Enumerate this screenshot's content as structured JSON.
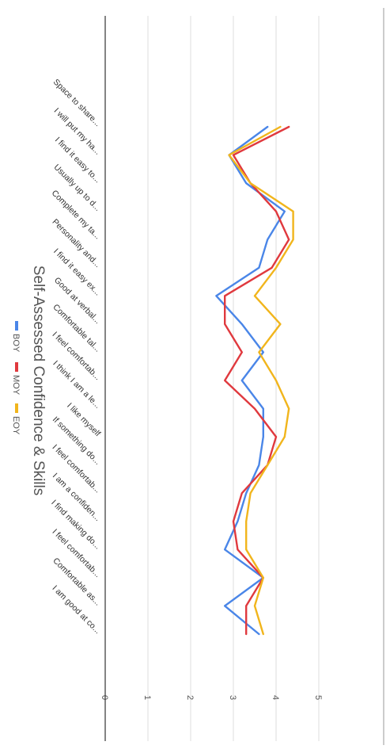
{
  "chart_data": {
    "type": "line",
    "title": "Self-Assessed Confidence & Skills",
    "xlabel": "",
    "ylabel": "",
    "ylim": [
      0,
      5
    ],
    "yticks": [
      "0",
      "1",
      "2",
      "3",
      "4",
      "5"
    ],
    "grid": true,
    "orientation": "rotated-90-clockwise",
    "legend_position": "bottom",
    "categories": [
      "I am good at co...",
      "Comfortable as...",
      "I feel comfortab...",
      "I find making do...",
      "I am a confiden...",
      "I feel comfortab...",
      "If something do...",
      "I like myself",
      "I think I am a le...",
      "I feel comfortab...",
      "Comfortable tal...",
      "Good at verbal...",
      "I find it easy ex...",
      "Personality and...",
      "Complete my ta...",
      "Usually up to d...",
      "I find it easy to...",
      "I will put my ha...",
      "Space to share..."
    ],
    "series": [
      {
        "name": "BOY",
        "color": "#4a86e8",
        "values": [
          3.6,
          2.8,
          3.7,
          2.8,
          3.1,
          3.3,
          3.6,
          3.7,
          3.7,
          3.2,
          3.7,
          3.2,
          2.6,
          3.6,
          3.8,
          4.2,
          3.3,
          2.9,
          3.8
        ]
      },
      {
        "name": "MOY",
        "color": "#e0393e",
        "values": [
          3.3,
          3.3,
          3.7,
          3.1,
          3.0,
          3.2,
          3.8,
          4.0,
          3.5,
          2.8,
          3.2,
          2.8,
          2.8,
          3.9,
          4.3,
          4.0,
          3.4,
          3.0,
          4.3
        ]
      },
      {
        "name": "EOY",
        "color": "#f1b51c",
        "values": [
          3.7,
          3.5,
          3.7,
          3.3,
          3.3,
          3.4,
          3.8,
          4.2,
          4.3,
          4.0,
          3.6,
          4.1,
          3.5,
          4.0,
          4.4,
          4.4,
          3.4,
          2.9,
          4.1
        ]
      }
    ]
  }
}
